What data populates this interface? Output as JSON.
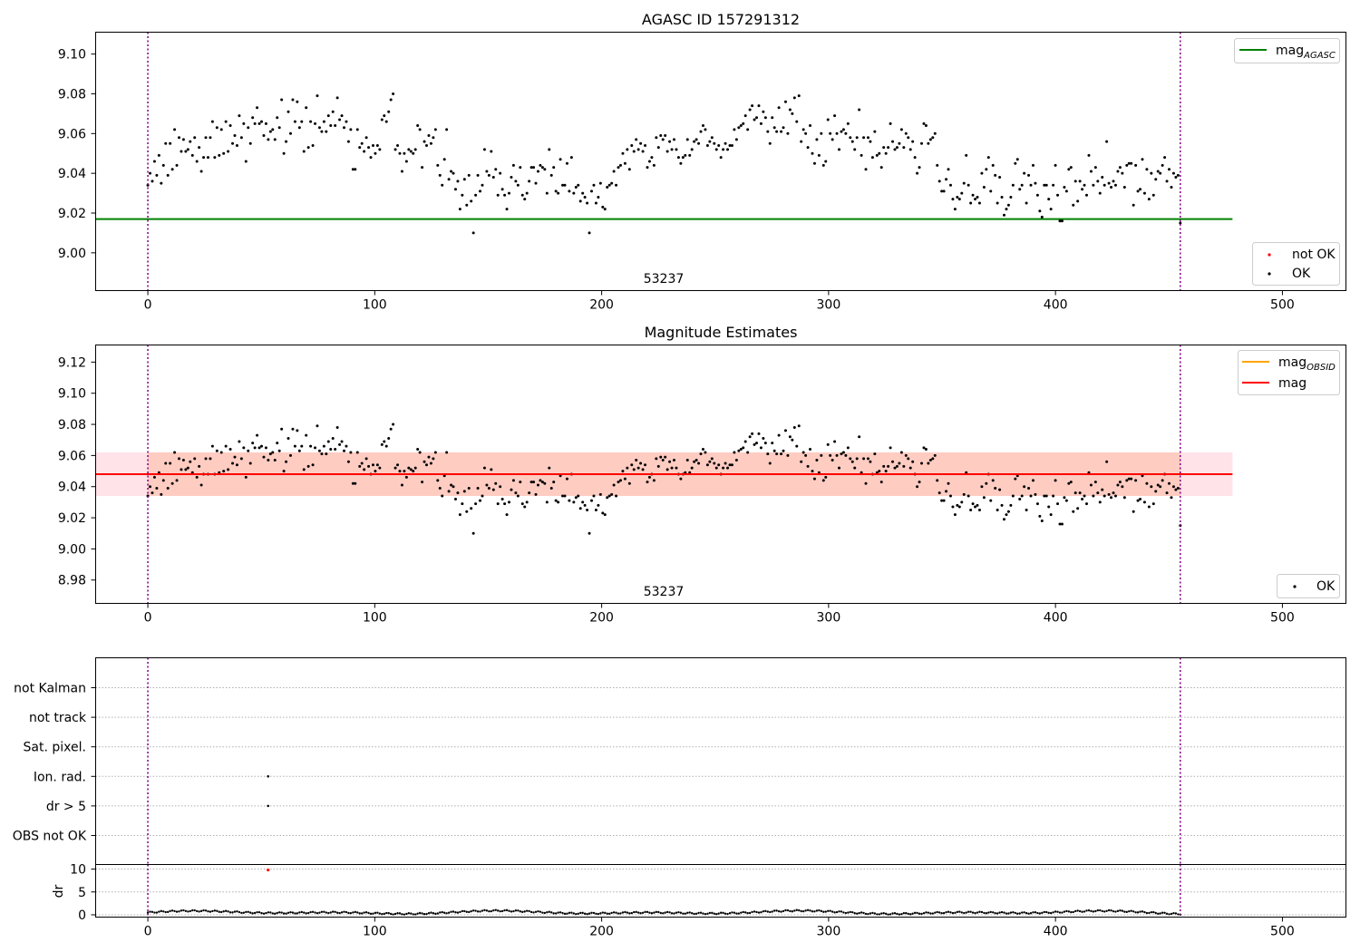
{
  "colors": {
    "ok": "#000000",
    "not_ok": "#ff0000",
    "mag_agasc": "#008000",
    "mag_obsid": "#ffa500",
    "mag": "#ff0000",
    "band_outer": "#ffc0cb",
    "band_inner": "#ffa07a",
    "obs_boundary": "#800080"
  },
  "chart_data": [
    {
      "type": "scatter",
      "title": "AGASC ID 157291312",
      "x_range": [
        -23,
        528
      ],
      "ylim": [
        8.981,
        9.111
      ],
      "x_ticks": [
        0,
        100,
        200,
        300,
        400,
        500
      ],
      "y_ticks": [
        "9.00",
        "9.02",
        "9.04",
        "9.06",
        "9.08",
        "9.10"
      ],
      "obs_label": "53237",
      "obs_boundaries": [
        0,
        455
      ],
      "lines": [
        {
          "name": "mag_AGASC",
          "y": 9.017,
          "x_start": -23,
          "x_end": 478
        }
      ],
      "series": [
        {
          "name": "OK",
          "points_kind": "magnitudes"
        },
        {
          "name": "not OK",
          "points_kind": "none"
        }
      ],
      "legend_lines": {
        "main": "mag",
        "sub": "AGASC"
      },
      "legend_points": [
        "not OK",
        "OK"
      ]
    },
    {
      "type": "scatter",
      "title": "Magnitude Estimates",
      "x_range": [
        -23,
        528
      ],
      "ylim": [
        8.965,
        9.131
      ],
      "x_ticks": [
        0,
        100,
        200,
        300,
        400,
        500
      ],
      "y_ticks": [
        "8.98",
        "9.00",
        "9.02",
        "9.04",
        "9.06",
        "9.08",
        "9.10",
        "9.12"
      ],
      "obs_label": "53237",
      "obs_boundaries": [
        0,
        455
      ],
      "lines": [
        {
          "name": "mag_OBSID",
          "y": 9.048,
          "x_start": 0,
          "x_end": 455
        },
        {
          "name": "mag",
          "y": 9.048,
          "x_start": -23,
          "x_end": 478
        }
      ],
      "bands": [
        {
          "name": "mag range",
          "low": 9.034,
          "high": 9.062,
          "x_start": -23,
          "x_end": 478
        },
        {
          "name": "obsid range",
          "low": 9.034,
          "high": 9.062,
          "x_start": 0,
          "x_end": 455
        }
      ],
      "series": [
        {
          "name": "OK",
          "points_kind": "magnitudes"
        }
      ],
      "legend_lines": [
        {
          "main": "mag",
          "sub": "OBSID"
        },
        {
          "main": "mag",
          "sub": ""
        }
      ],
      "legend_points": [
        "OK"
      ]
    },
    {
      "type": "scatter",
      "x_range": [
        -23,
        528
      ],
      "categories": [
        "OBS not OK",
        "dr > 5",
        "Ion. rad.",
        "Sat. pixel.",
        "not track",
        "not Kalman"
      ],
      "flag_points": [
        {
          "category": "Ion. rad.",
          "x": 53
        },
        {
          "category": "dr > 5",
          "x": 53
        }
      ],
      "obs_boundaries": [
        0,
        455
      ]
    },
    {
      "type": "scatter",
      "x_range": [
        -23,
        528
      ],
      "ylabel": "dr",
      "ylim": [
        -0.5,
        11
      ],
      "y_ticks": [
        "0",
        "5",
        "10"
      ],
      "x_ticks": [
        0,
        100,
        200,
        300,
        400,
        500
      ],
      "outliers": [
        {
          "x": 53,
          "y": 9.8
        }
      ],
      "series": [
        {
          "name": "dr",
          "baseline": 0.5,
          "amplitude": 0.4
        }
      ],
      "obs_boundaries": [
        0,
        455
      ]
    }
  ],
  "magnitude_samples": [
    9.034,
    9.04,
    9.036,
    9.046,
    9.039,
    9.049,
    9.035,
    9.044,
    9.055,
    9.039,
    9.055,
    9.042,
    9.062,
    9.044,
    9.058,
    9.051,
    9.057,
    9.051,
    9.052,
    9.056,
    9.049,
    9.058,
    9.046,
    9.053,
    9.041,
    9.048,
    9.058,
    9.048,
    9.058,
    9.066,
    9.048,
    9.063,
    9.049,
    9.062,
    9.05,
    9.066,
    9.051,
    9.064,
    9.055,
    9.059,
    9.054,
    9.069,
    9.058,
    9.065,
    9.046,
    9.063,
    9.055,
    9.068,
    9.065,
    9.073,
    9.065,
    9.066,
    9.059,
    9.065,
    9.057,
    9.061,
    9.062,
    9.057,
    9.068,
    9.063,
    9.077,
    9.05,
    9.056,
    9.071,
    9.06,
    9.077,
    9.066,
    9.076,
    9.063,
    9.066,
    9.051,
    9.073,
    9.053,
    9.066,
    9.054,
    9.065,
    9.079,
    9.063,
    9.061,
    9.066,
    9.061,
    9.069,
    9.064,
    9.071,
    9.064,
    9.078,
    9.067,
    9.069,
    9.063,
    9.066,
    9.056,
    9.062,
    9.042,
    9.042,
    9.062,
    9.053,
    9.055,
    9.051,
    9.058,
    9.053,
    9.048,
    9.054,
    9.05,
    9.054,
    9.052,
    9.067,
    9.069,
    9.066,
    9.071,
    9.077,
    9.08,
    9.052,
    9.054,
    9.05,
    9.041,
    9.05,
    9.046,
    9.052,
    9.051,
    9.05,
    9.052,
    9.064,
    9.062,
    9.043,
    9.056,
    9.054,
    9.059,
    9.055,
    9.058,
    9.062,
    9.044,
    9.039,
    9.034,
    9.047,
    9.062,
    9.037,
    9.041,
    9.04,
    9.032,
    9.036,
    9.022,
    9.029,
    9.037,
    9.024,
    9.039,
    9.026,
    9.01,
    9.029,
    9.039,
    9.031,
    9.034,
    9.052,
    9.041,
    9.039,
    9.051,
    9.038,
    9.042,
    9.029,
    9.04,
    9.032,
    9.029,
    9.022,
    9.03,
    9.038,
    9.044,
    9.036,
    9.034,
    9.043,
    9.029,
    9.027,
    9.03,
    9.036,
    9.043,
    9.043,
    9.035,
    9.041,
    9.044,
    9.043,
    9.042,
    9.03,
    9.052,
    9.039,
    9.043,
    9.031,
    9.03,
    9.047,
    9.034,
    9.034,
    9.045,
    9.031,
    9.048,
    9.03,
    9.033,
    9.034,
    9.026,
    9.03,
    9.028,
    9.025,
    9.01,
    9.031,
    9.034,
    9.025,
    9.028,
    9.035,
    9.023,
    9.022,
    9.033,
    9.034,
    9.035,
    9.041,
    9.034,
    9.043,
    9.044,
    9.05,
    9.045,
    9.052,
    9.042,
    9.054,
    9.051,
    9.057,
    9.052,
    9.055,
    9.051,
    9.054,
    9.043,
    9.046,
    9.048,
    9.044,
    9.058,
    9.053,
    9.059,
    9.057,
    9.059,
    9.051,
    9.056,
    9.052,
    9.057,
    9.052,
    9.048,
    9.045,
    9.048,
    9.049,
    9.057,
    9.049,
    9.052,
    9.056,
    9.057,
    9.055,
    9.061,
    9.064,
    9.062,
    9.054,
    9.056,
    9.058,
    9.055,
    9.052,
    9.054,
    9.048,
    9.052,
    9.055,
    9.052,
    9.054,
    9.054,
    9.062,
    9.057,
    9.063,
    9.064,
    9.065,
    9.069,
    9.062,
    9.072,
    9.074,
    9.067,
    9.068,
    9.074,
    9.065,
    9.071,
    9.068,
    9.061,
    9.055,
    9.068,
    9.063,
    9.061,
    9.073,
    9.061,
    9.063,
    9.076,
    9.06,
    9.072,
    9.07,
    9.078,
    9.066,
    9.079,
    9.056,
    9.062,
    9.06,
    9.053,
    9.064,
    9.05,
    9.045,
    9.057,
    9.049,
    9.06,
    9.044,
    9.046,
    9.067,
    9.06,
    9.057,
    9.069,
    9.06,
    9.052,
    9.061,
    9.062,
    9.06,
    9.065,
    9.058,
    9.056,
    9.052,
    9.058,
    9.072,
    9.049,
    9.058,
    9.042,
    9.058,
    9.056,
    9.048,
    9.061,
    9.049,
    9.05,
    9.043,
    9.053,
    9.05,
    9.053,
    9.065,
    9.056,
    9.052,
    9.053,
    9.055,
    9.062,
    9.053,
    9.06,
    9.058,
    9.052,
    9.056,
    9.048,
    9.04,
    9.043,
    9.055,
    9.065,
    9.064,
    9.055,
    9.057,
    9.058,
    9.06,
    9.044,
    9.036,
    9.031,
    9.031,
    9.037,
    9.042,
    9.034,
    9.027,
    9.022,
    9.028,
    9.027,
    9.03,
    9.035,
    9.049,
    9.034,
    9.025,
    9.029,
    9.027,
    9.028,
    9.025,
    9.04,
    9.033,
    9.042,
    9.048,
    9.031,
    9.044,
    9.039,
    9.025,
    9.038,
    9.028,
    9.019,
    9.022,
    9.024,
    9.028,
    9.034,
    9.045,
    9.047,
    9.032,
    9.034,
    9.04,
    9.025,
    9.039,
    9.034,
    9.044,
    9.035,
    9.029,
    9.021,
    9.018,
    9.034,
    9.034,
    9.027,
    9.022,
    9.034,
    9.044,
    9.029,
    9.016,
    9.016,
    9.033,
    9.031,
    9.042,
    9.043,
    9.024,
    9.036,
    9.026,
    9.036,
    9.032,
    9.034,
    9.029,
    9.049,
    9.041,
    9.034,
    9.043,
    9.036,
    9.03,
    9.038,
    9.034,
    9.056,
    9.035,
    9.033,
    9.036,
    9.034,
    9.041,
    9.043,
    9.04,
    9.033,
    9.044,
    9.045,
    9.045,
    9.024,
    9.044,
    9.031,
    9.032,
    9.047,
    9.03,
    9.042,
    9.027,
    9.04,
    9.029,
    9.037,
    9.041,
    9.04,
    9.044,
    9.048,
    9.036,
    9.042,
    9.033,
    9.04,
    9.038,
    9.039,
    9.015
  ]
}
